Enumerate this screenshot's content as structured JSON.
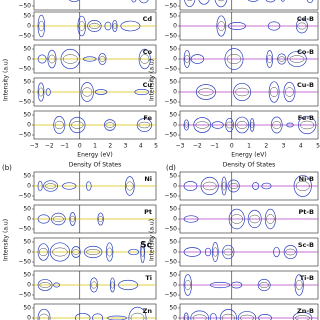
{
  "top": {
    "left": {
      "subplots": [
        "Cd",
        "Co",
        "Cu",
        "Fe"
      ]
    },
    "right": {
      "subplots": [
        "Cd-B",
        "Co-B",
        "Cu-B",
        "Fe-B"
      ]
    },
    "x_ticks": [
      "−3",
      "−2",
      "−1",
      "0",
      "1",
      "2",
      "3",
      "4",
      "5"
    ],
    "x_label": "Energy (eV)"
  },
  "bottom": {
    "left": {
      "label": "(b)",
      "title": "Density Of States",
      "subplots": [
        "Ni",
        "Pt",
        "Sc",
        "Ti",
        "Zn"
      ]
    },
    "right": {
      "label": "(d)",
      "title": "Density Of States",
      "subplots": [
        "Ni-B",
        "Pt-B",
        "Sc-B",
        "Ti-B",
        "Zn-B"
      ]
    }
  },
  "y_ticks": [
    "50",
    "0",
    "−50"
  ],
  "y_label": "Intensity (a.u)"
}
